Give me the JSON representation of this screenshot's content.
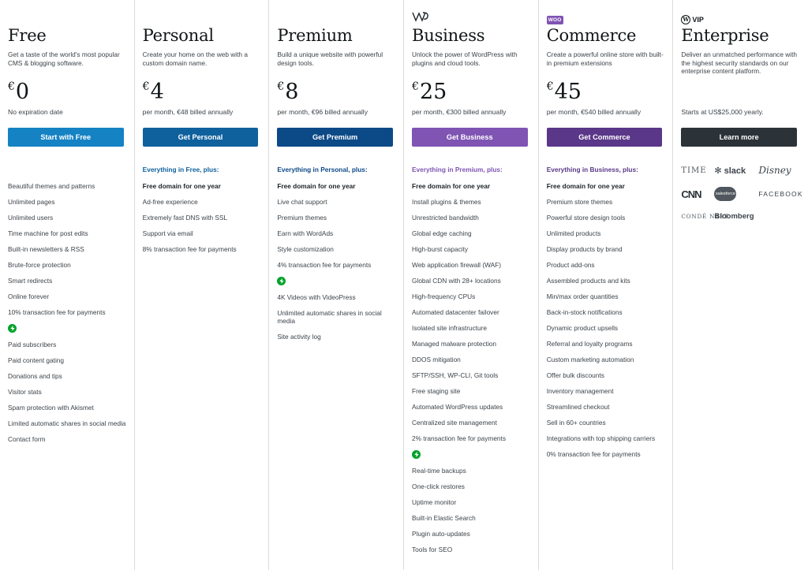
{
  "plans": [
    {
      "id": "free",
      "name": "Free",
      "tagline": "Get a taste of the world's most popular CMS & blogging software.",
      "currency": "€",
      "price": "0",
      "billing": "No expiration date",
      "cta": "Start with Free",
      "cta_color": "#1582c3",
      "plus_label": "",
      "features": [
        {
          "text": "Beautiful themes and patterns"
        },
        {
          "text": "Unlimited pages"
        },
        {
          "text": "Unlimited users"
        },
        {
          "text": "Time machine for post edits"
        },
        {
          "text": "Built-in newsletters & RSS"
        },
        {
          "text": "Brute-force protection"
        },
        {
          "text": "Smart redirects"
        },
        {
          "text": "Online forever"
        },
        {
          "text": "10% transaction fee for payments"
        },
        {
          "divider": true
        },
        {
          "text": "Paid subscribers"
        },
        {
          "text": "Paid content gating"
        },
        {
          "text": "Donations and tips"
        },
        {
          "text": "Visitor stats"
        },
        {
          "text": "Spam protection with Akismet"
        },
        {
          "text": "Limited automatic shares in social media"
        },
        {
          "text": "Contact form"
        }
      ]
    },
    {
      "id": "personal",
      "name": "Personal",
      "tagline": "Create your home on the web with a custom domain name.",
      "currency": "€",
      "price": "4",
      "billing": "per month, €48 billed annually",
      "cta": "Get Personal",
      "cta_color": "#0f619d",
      "plus_label": "Everything in Free, plus:",
      "plus_color": "#0f619d",
      "features": [
        {
          "text": "Free domain for one year",
          "strong": true
        },
        {
          "text": "Ad-free experience"
        },
        {
          "text": "Extremely fast DNS with SSL"
        },
        {
          "text": "Support via email"
        },
        {
          "text": "8% transaction fee for payments"
        }
      ]
    },
    {
      "id": "premium",
      "name": "Premium",
      "tagline": "Build a unique website with powerful design tools.",
      "currency": "€",
      "price": "8",
      "billing": "per month, €96 billed annually",
      "cta": "Get Premium",
      "cta_color": "#0c4987",
      "plus_label": "Everything in Personal, plus:",
      "plus_color": "#0c4987",
      "features": [
        {
          "text": "Free domain for one year",
          "strong": true
        },
        {
          "text": "Live chat support"
        },
        {
          "text": "Premium themes"
        },
        {
          "text": "Earn with WordAds"
        },
        {
          "text": "Style customization"
        },
        {
          "text": "4% transaction fee for payments"
        },
        {
          "divider": true
        },
        {
          "text": "4K Videos with VideoPress"
        },
        {
          "text": "Unlimited automatic shares in social media"
        },
        {
          "text": "Site activity log"
        }
      ]
    },
    {
      "id": "business",
      "name": "Business",
      "logo": "wordpress-logo",
      "tagline": "Unlock the power of WordPress with plugins and cloud tools.",
      "currency": "€",
      "price": "25",
      "billing": "per month, €300 billed annually",
      "cta": "Get Business",
      "cta_color": "#7f54b3",
      "plus_label": "Everything in Premium, plus:",
      "plus_color": "#7f54b3",
      "features": [
        {
          "text": "Free domain for one year",
          "strong": true
        },
        {
          "text": "Install plugins & themes"
        },
        {
          "text": "Unrestricted bandwidth"
        },
        {
          "text": "Global edge caching"
        },
        {
          "text": "High-burst capacity"
        },
        {
          "text": "Web application firewall (WAF)"
        },
        {
          "text": "Global CDN with 28+ locations"
        },
        {
          "text": "High-frequency CPUs"
        },
        {
          "text": "Automated datacenter failover"
        },
        {
          "text": "Isolated site infrastructure"
        },
        {
          "text": "Managed malware protection"
        },
        {
          "text": "DDOS mitigation"
        },
        {
          "text": "SFTP/SSH, WP-CLI, Git tools"
        },
        {
          "text": "Free staging site"
        },
        {
          "text": "Automated WordPress updates"
        },
        {
          "text": "Centralized site management"
        },
        {
          "text": "2% transaction fee for payments"
        },
        {
          "divider": true
        },
        {
          "text": "Real-time backups"
        },
        {
          "text": "One-click restores"
        },
        {
          "text": "Uptime monitor"
        },
        {
          "text": "Built-in Elastic Search"
        },
        {
          "text": "Plugin auto-updates"
        },
        {
          "text": "Tools for SEO"
        }
      ]
    },
    {
      "id": "commerce",
      "name": "Commerce",
      "logo": "woo",
      "logo_text": "WOO",
      "tagline": "Create a powerful online store with built-in premium extensions",
      "currency": "€",
      "price": "45",
      "billing": "per month, €540 billed annually",
      "cta": "Get Commerce",
      "cta_color": "#5a3788",
      "plus_label": "Everything in Business, plus:",
      "plus_color": "#5a3788",
      "features": [
        {
          "text": "Free domain for one year",
          "strong": true
        },
        {
          "text": "Premium store themes"
        },
        {
          "text": "Powerful store design tools"
        },
        {
          "text": "Unlimited products"
        },
        {
          "text": "Display products by brand"
        },
        {
          "text": "Product add-ons"
        },
        {
          "text": "Assembled products and kits"
        },
        {
          "text": "Min/max order quantities"
        },
        {
          "text": "Back-in-stock notifications"
        },
        {
          "text": "Dynamic product upsells"
        },
        {
          "text": "Referral and loyalty programs"
        },
        {
          "text": "Custom marketing automation"
        },
        {
          "text": "Offer bulk discounts"
        },
        {
          "text": "Inventory management"
        },
        {
          "text": "Streamlined checkout"
        },
        {
          "text": "Sell in 60+ countries"
        },
        {
          "text": "Integrations with top shipping carriers"
        },
        {
          "text": "0% transaction fee for payments"
        }
      ]
    },
    {
      "id": "enterprise",
      "name": "Enterprise",
      "logo": "vip",
      "logo_text": "VIP",
      "tagline": "Deliver an unmatched performance with the highest security standards on our enterprise content platform.",
      "billing": "Starts at US$25,000 yearly.",
      "cta": "Learn more",
      "cta_color": "#2c3338",
      "clients": [
        "TIME",
        "slack",
        "Disney",
        "CNN",
        "salesforce",
        "FACEBOOK",
        "CONDÉ NAST",
        "Bloomberg"
      ]
    }
  ]
}
